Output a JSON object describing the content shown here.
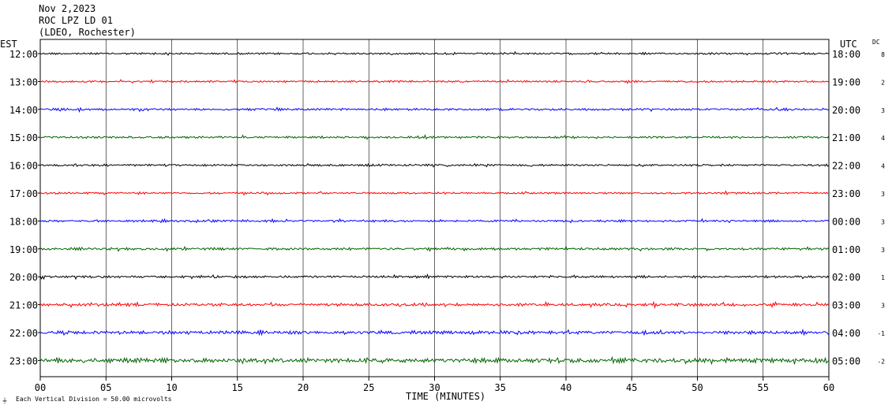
{
  "header": {
    "date": "Nov 2,2023",
    "station": "ROC LPZ LD 01",
    "network": "(LDEO, Rochester)"
  },
  "chart_data": {
    "type": "line",
    "left_axis_title": "EST",
    "right_axis_title": "UTC",
    "dc_title": "DC",
    "xlabel": "TIME (MINUTES)",
    "x_ticks": [
      "00",
      "05",
      "10",
      "15",
      "20",
      "25",
      "30",
      "35",
      "40",
      "45",
      "50",
      "55",
      "60"
    ],
    "xlim": [
      0,
      60
    ],
    "grid": true,
    "footer_note": "Each Vertical Division =   50.00 microvolts",
    "trace_colors": [
      "#000000",
      "#ff0000",
      "#0000ff",
      "#006400"
    ],
    "rows": [
      {
        "est": "12:00",
        "utc": "18:00",
        "dc": "8",
        "amplitude": 1.0
      },
      {
        "est": "13:00",
        "utc": "19:00",
        "dc": "2",
        "amplitude": 1.0
      },
      {
        "est": "14:00",
        "utc": "20:00",
        "dc": "3",
        "amplitude": 1.2
      },
      {
        "est": "15:00",
        "utc": "21:00",
        "dc": "4",
        "amplitude": 1.1
      },
      {
        "est": "16:00",
        "utc": "22:00",
        "dc": "4",
        "amplitude": 1.1
      },
      {
        "est": "17:00",
        "utc": "23:00",
        "dc": "3",
        "amplitude": 1.0
      },
      {
        "est": "18:00",
        "utc": "00:00",
        "dc": "3",
        "amplitude": 1.1
      },
      {
        "est": "19:00",
        "utc": "01:00",
        "dc": "3",
        "amplitude": 1.3
      },
      {
        "est": "20:00",
        "utc": "02:00",
        "dc": "1",
        "amplitude": 1.2
      },
      {
        "est": "21:00",
        "utc": "03:00",
        "dc": "3",
        "amplitude": 1.5
      },
      {
        "est": "22:00",
        "utc": "04:00",
        "dc": "-1",
        "amplitude": 1.8
      },
      {
        "est": "23:00",
        "utc": "05:00",
        "dc": "-2",
        "amplitude": 2.4
      }
    ]
  }
}
